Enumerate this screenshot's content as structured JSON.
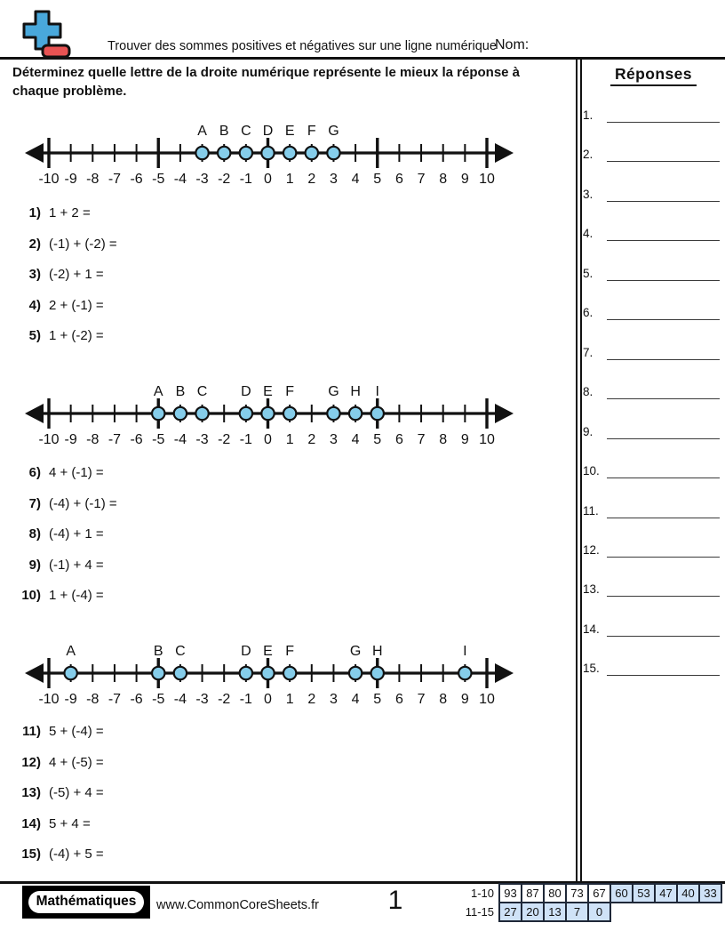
{
  "header": {
    "worksheet_title": "Trouver des sommes positives et négatives sur une ligne numérique",
    "name_label": "Nom:",
    "instructions": "Déterminez quelle lettre de la droite numérique représente le mieux la réponse à chaque problème."
  },
  "answers_panel": {
    "title": "Réponses",
    "items": [
      "1.",
      "2.",
      "3.",
      "4.",
      "5.",
      "6.",
      "7.",
      "8.",
      "9.",
      "10.",
      "11.",
      "12.",
      "13.",
      "14.",
      "15."
    ]
  },
  "sections": [
    {
      "number_line": {
        "min": -10,
        "max": 10,
        "major_step": 5,
        "points": [
          {
            "label": "A",
            "value": -3
          },
          {
            "label": "B",
            "value": -2
          },
          {
            "label": "C",
            "value": -1
          },
          {
            "label": "D",
            "value": 0
          },
          {
            "label": "E",
            "value": 1
          },
          {
            "label": "F",
            "value": 2
          },
          {
            "label": "G",
            "value": 3
          }
        ]
      },
      "problems": [
        {
          "num": "1)",
          "expr": "1 + 2 ="
        },
        {
          "num": "2)",
          "expr": "(-1) + (-2) ="
        },
        {
          "num": "3)",
          "expr": "(-2) + 1 ="
        },
        {
          "num": "4)",
          "expr": "2 + (-1) ="
        },
        {
          "num": "5)",
          "expr": "1 + (-2) ="
        }
      ]
    },
    {
      "number_line": {
        "min": -10,
        "max": 10,
        "major_step": 5,
        "points": [
          {
            "label": "A",
            "value": -5
          },
          {
            "label": "B",
            "value": -4
          },
          {
            "label": "C",
            "value": -3
          },
          {
            "label": "D",
            "value": -1
          },
          {
            "label": "E",
            "value": 0
          },
          {
            "label": "F",
            "value": 1
          },
          {
            "label": "G",
            "value": 3
          },
          {
            "label": "H",
            "value": 4
          },
          {
            "label": "I",
            "value": 5
          }
        ]
      },
      "problems": [
        {
          "num": "6)",
          "expr": "4 + (-1) ="
        },
        {
          "num": "7)",
          "expr": "(-4) + (-1) ="
        },
        {
          "num": "8)",
          "expr": "(-4) + 1 ="
        },
        {
          "num": "9)",
          "expr": "(-1) + 4 ="
        },
        {
          "num": "10)",
          "expr": "1 + (-4) ="
        }
      ]
    },
    {
      "number_line": {
        "min": -10,
        "max": 10,
        "major_step": 5,
        "points": [
          {
            "label": "A",
            "value": -9
          },
          {
            "label": "B",
            "value": -5
          },
          {
            "label": "C",
            "value": -4
          },
          {
            "label": "D",
            "value": -1
          },
          {
            "label": "E",
            "value": 0
          },
          {
            "label": "F",
            "value": 1
          },
          {
            "label": "G",
            "value": 4
          },
          {
            "label": "H",
            "value": 5
          },
          {
            "label": "I",
            "value": 9
          }
        ]
      },
      "problems": [
        {
          "num": "11)",
          "expr": "5 + (-4) ="
        },
        {
          "num": "12)",
          "expr": "4 + (-5) ="
        },
        {
          "num": "13)",
          "expr": "(-5) + 4 ="
        },
        {
          "num": "14)",
          "expr": "5 + 4 ="
        },
        {
          "num": "15)",
          "expr": "(-4) + 5 ="
        }
      ]
    }
  ],
  "footer": {
    "brand": "Mathématiques",
    "site": "www.CommonCoreSheets.fr",
    "page_number": "1",
    "score_table": {
      "rows": [
        {
          "label": "1-10",
          "cells": [
            {
              "text": "93",
              "highlighted": false
            },
            {
              "text": "87",
              "highlighted": false
            },
            {
              "text": "80",
              "highlighted": false
            },
            {
              "text": "73",
              "highlighted": false
            },
            {
              "text": "67",
              "highlighted": false
            },
            {
              "text": "60",
              "highlighted": true
            },
            {
              "text": "53",
              "highlighted": true
            },
            {
              "text": "47",
              "highlighted": true
            },
            {
              "text": "40",
              "highlighted": true
            },
            {
              "text": "33",
              "highlighted": true
            }
          ]
        },
        {
          "label": "11-15",
          "cells": [
            {
              "text": "27",
              "highlighted": true
            },
            {
              "text": "20",
              "highlighted": true
            },
            {
              "text": "13",
              "highlighted": true
            },
            {
              "text": "7",
              "highlighted": true
            },
            {
              "text": "0",
              "highlighted": true
            }
          ]
        }
      ]
    }
  },
  "colors": {
    "point_fill": "#85cdea",
    "point_stroke": "#111111",
    "icon_blue": "#49a8db",
    "icon_red": "#e85353",
    "score_highlight": "#cfe2f7"
  }
}
